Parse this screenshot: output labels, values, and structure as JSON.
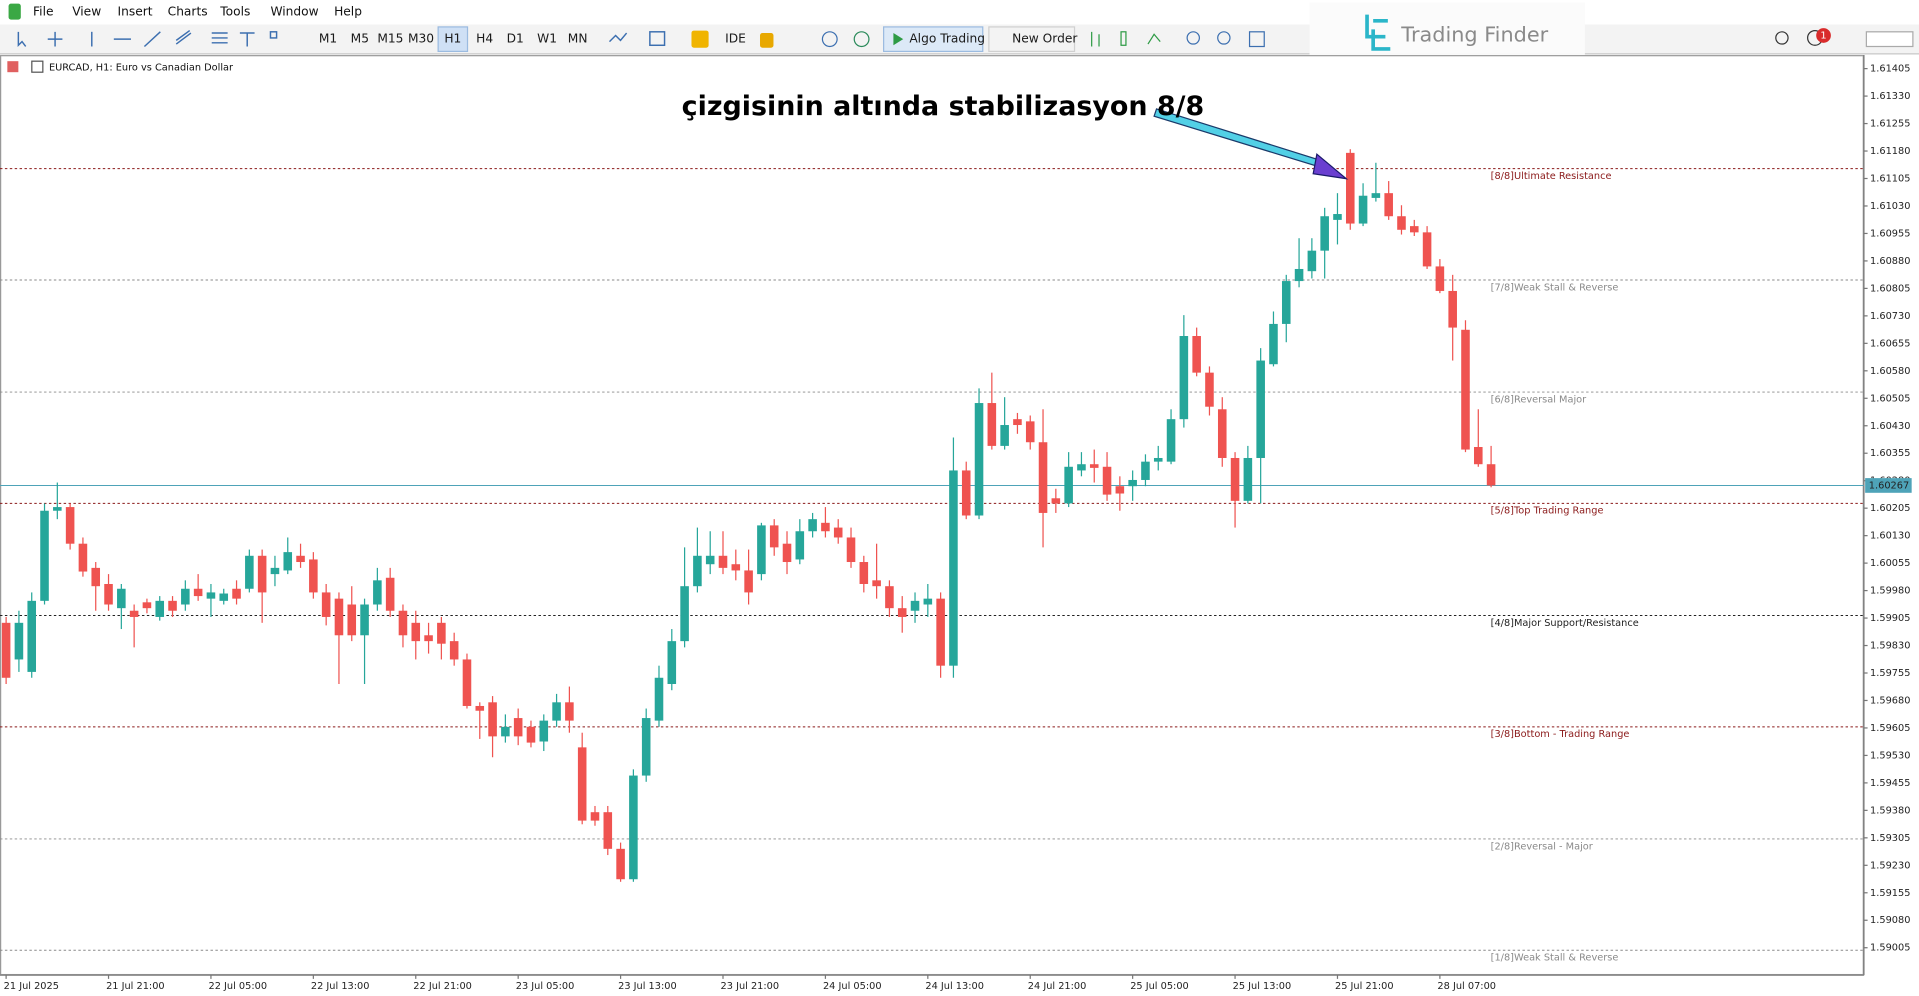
{
  "menu": [
    "File",
    "View",
    "Insert",
    "Charts",
    "Tools",
    "Window",
    "Help"
  ],
  "timeframes": [
    "M1",
    "M5",
    "M15",
    "M30",
    "H1",
    "H4",
    "D1",
    "W1",
    "MN"
  ],
  "active_timeframe": "H1",
  "toolbar": {
    "ide": "IDE",
    "algo": "Algo Trading",
    "order": "New Order"
  },
  "brand": "Trading Finder",
  "notification": "1",
  "chart_data": {
    "type": "candlestick",
    "title": "EURCAD, H1:  Euro vs Canadian Dollar",
    "annotation": "çizgisinin altında stabilizasyon 8/8",
    "categories": [
      "21 Jul 2025",
      null,
      null,
      null,
      null,
      null,
      null,
      null,
      "21 Jul 21:00",
      null,
      null,
      null,
      null,
      null,
      null,
      null,
      "22 Jul 05:00",
      null,
      null,
      null,
      null,
      null,
      null,
      null,
      "22 Jul 13:00",
      null,
      null,
      null,
      null,
      null,
      null,
      null,
      "22 Jul 21:00",
      null,
      null,
      null,
      null,
      null,
      null,
      null,
      "23 Jul 05:00",
      null,
      null,
      null,
      null,
      null,
      null,
      null,
      "23 Jul 13:00",
      null,
      null,
      null,
      null,
      null,
      null,
      null,
      "23 Jul 21:00",
      null,
      null,
      null,
      null,
      null,
      null,
      null,
      "24 Jul 05:00",
      null,
      null,
      null,
      null,
      null,
      null,
      null,
      "24 Jul 13:00",
      null,
      null,
      null,
      null,
      null,
      null,
      null,
      "24 Jul 21:00",
      null,
      null,
      null,
      null,
      null,
      null,
      null,
      "25 Jul 05:00",
      null,
      null,
      null,
      null,
      null,
      null,
      null,
      "25 Jul 13:00",
      null,
      null,
      null,
      null,
      null,
      null,
      null,
      "25 Jul 21:00",
      null,
      null,
      null,
      null,
      null,
      null,
      null,
      "28 Jul 07:00",
      null,
      null,
      null,
      null
    ],
    "open": [
      1.59892,
      1.59792,
      1.59758,
      1.59952,
      1.60198,
      1.60208,
      1.60108,
      1.60042,
      1.59998,
      1.59932,
      1.59925,
      1.59948,
      1.59908,
      1.59952,
      1.59942,
      1.59985,
      1.59958,
      1.59952,
      1.59985,
      1.59985,
      1.60075,
      1.60025,
      1.60035,
      1.60075,
      1.60065,
      1.59975,
      1.59958,
      1.59942,
      1.59858,
      1.59942,
      1.60015,
      1.59925,
      1.59892,
      1.59858,
      1.59892,
      1.59842,
      1.59792,
      1.59665,
      1.59675,
      1.59582,
      1.59632,
      1.59608,
      1.59568,
      1.59625,
      1.59675,
      1.59552,
      1.59375,
      1.59375,
      1.59275,
      1.59192,
      1.59475,
      1.59625,
      1.59725,
      1.59842,
      1.59992,
      1.60052,
      1.60075,
      1.60052,
      1.60035,
      1.60025,
      1.60158,
      1.60108,
      1.60065,
      1.60142,
      1.60165,
      1.60152,
      1.60125,
      1.60058,
      1.60008,
      1.59992,
      1.59932,
      1.59925,
      1.59942,
      1.59958,
      1.59775,
      1.60308,
      1.60185,
      1.60492,
      1.60375,
      1.60448,
      1.60442,
      1.60385,
      1.60232,
      1.60218,
      1.60308,
      1.60325,
      1.60318,
      1.60265,
      1.60265,
      1.60282,
      1.60332,
      1.60332,
      1.60448,
      1.60675,
      1.60575,
      1.60475,
      1.60342,
      1.60225,
      1.60342,
      1.60598,
      1.60708,
      1.60825,
      1.60852,
      1.60908,
      1.60992,
      1.61175,
      1.60982,
      1.61052,
      1.61065,
      1.61002,
      1.60975,
      1.60958,
      1.60865,
      1.60798,
      1.60692,
      1.60372,
      1.60325
    ],
    "high": [
      1.59908,
      1.59925,
      1.59975,
      1.60218,
      1.60275,
      1.60218,
      1.60125,
      1.60058,
      1.60025,
      1.59998,
      1.59942,
      1.59958,
      1.59965,
      1.59965,
      1.60008,
      1.60025,
      1.59998,
      1.59985,
      1.60008,
      1.60092,
      1.60092,
      1.60075,
      1.60125,
      1.60108,
      1.60085,
      1.59998,
      1.59975,
      1.59992,
      1.59958,
      1.60042,
      1.60042,
      1.59942,
      1.59925,
      1.59892,
      1.59908,
      1.59865,
      1.59808,
      1.59675,
      1.59692,
      1.59642,
      1.59658,
      1.59625,
      1.59642,
      1.59698,
      1.59718,
      1.59592,
      1.59392,
      1.59392,
      1.59292,
      1.59492,
      1.59658,
      1.59775,
      1.59875,
      1.60098,
      1.60152,
      1.60142,
      1.60142,
      1.60092,
      1.60092,
      1.60165,
      1.60175,
      1.60142,
      1.60175,
      1.60192,
      1.60208,
      1.60175,
      1.60152,
      1.60075,
      1.60108,
      1.60008,
      1.59965,
      1.59975,
      1.59998,
      1.59975,
      1.60398,
      1.60332,
      1.60532,
      1.60575,
      1.60508,
      1.60465,
      1.60458,
      1.60475,
      1.60258,
      1.60358,
      1.60358,
      1.60365,
      1.60358,
      1.60292,
      1.60308,
      1.60352,
      1.60375,
      1.60475,
      1.60732,
      1.60698,
      1.60592,
      1.60508,
      1.60358,
      1.60375,
      1.60642,
      1.60742,
      1.60842,
      1.60942,
      1.60942,
      1.61025,
      1.61065,
      1.61185,
      1.61092,
      1.61148,
      1.61098,
      1.61032,
      1.60992,
      1.60975,
      1.60885,
      1.60842,
      1.60718,
      1.60475,
      1.60375
    ],
    "low": [
      1.59725,
      1.59758,
      1.59742,
      1.59942,
      1.60175,
      1.60092,
      1.60018,
      1.59925,
      1.59925,
      1.59875,
      1.59825,
      1.59918,
      1.59898,
      1.59908,
      1.59925,
      1.59952,
      1.59908,
      1.59942,
      1.59942,
      1.59975,
      1.59892,
      1.59992,
      1.60025,
      1.60042,
      1.59958,
      1.59885,
      1.59725,
      1.59842,
      1.59725,
      1.59925,
      1.59908,
      1.59825,
      1.59792,
      1.59808,
      1.59792,
      1.59775,
      1.59658,
      1.59575,
      1.59525,
      1.59565,
      1.59558,
      1.59552,
      1.59542,
      1.59608,
      1.59592,
      1.59342,
      1.59338,
      1.59258,
      1.59185,
      1.59185,
      1.59458,
      1.59608,
      1.59708,
      1.59825,
      1.59975,
      1.60025,
      1.60025,
      1.60008,
      1.59942,
      1.60008,
      1.60075,
      1.60025,
      1.60052,
      1.60125,
      1.60125,
      1.60108,
      1.60042,
      1.59975,
      1.59958,
      1.59908,
      1.59865,
      1.59892,
      1.59908,
      1.59742,
      1.59742,
      1.60175,
      1.60175,
      1.60365,
      1.60365,
      1.60408,
      1.60365,
      1.60098,
      1.60192,
      1.60208,
      1.60292,
      1.60275,
      1.60225,
      1.60198,
      1.60225,
      1.60265,
      1.60308,
      1.60325,
      1.60425,
      1.60565,
      1.60458,
      1.60318,
      1.60152,
      1.60218,
      1.60218,
      1.60592,
      1.60658,
      1.60808,
      1.60832,
      1.60832,
      1.60925,
      1.60965,
      1.60975,
      1.61042,
      1.60992,
      1.60952,
      1.60948,
      1.60858,
      1.60792,
      1.60608,
      1.60358,
      1.60318,
      1.60262
    ],
    "close": [
      1.59742,
      1.59892,
      1.59952,
      1.60198,
      1.60208,
      1.60108,
      1.60032,
      1.59992,
      1.59942,
      1.59985,
      1.59908,
      1.59932,
      1.59952,
      1.59925,
      1.59985,
      1.59965,
      1.59975,
      1.59972,
      1.59958,
      1.60075,
      1.59975,
      1.60042,
      1.60085,
      1.60058,
      1.59975,
      1.59908,
      1.59858,
      1.59858,
      1.59942,
      1.60008,
      1.59925,
      1.59858,
      1.59842,
      1.59842,
      1.59835,
      1.59792,
      1.59665,
      1.59652,
      1.59582,
      1.59608,
      1.59582,
      1.59565,
      1.59625,
      1.59675,
      1.59625,
      1.59352,
      1.59352,
      1.59275,
      1.59192,
      1.59475,
      1.59632,
      1.59742,
      1.59842,
      1.59992,
      1.60075,
      1.60075,
      1.60042,
      1.60035,
      1.59975,
      1.60158,
      1.60098,
      1.60058,
      1.60142,
      1.60175,
      1.60142,
      1.60125,
      1.60058,
      1.59998,
      1.59992,
      1.59932,
      1.59908,
      1.59952,
      1.59958,
      1.59775,
      1.60308,
      1.60185,
      1.60492,
      1.60375,
      1.60432,
      1.60432,
      1.60385,
      1.60192,
      1.60218,
      1.60318,
      1.60325,
      1.60315,
      1.60242,
      1.60245,
      1.60282,
      1.60332,
      1.60342,
      1.60448,
      1.60675,
      1.60575,
      1.60482,
      1.60342,
      1.60225,
      1.60342,
      1.60608,
      1.60708,
      1.60825,
      1.60858,
      1.60908,
      1.61002,
      1.61008,
      1.60982,
      1.61058,
      1.61065,
      1.61002,
      1.60965,
      1.60958,
      1.60865,
      1.60798,
      1.60698,
      1.60365,
      1.60325,
      1.60267
    ],
    "up_color": "#26a69a",
    "down_color": "#ef5350",
    "ylim": [
      1.5893,
      1.61442
    ],
    "yticks": [
      1.59005,
      {
        "value": 1.5908,
        "label": "1.59080"
      },
      1.59155,
      {
        "value": 1.5923,
        "label": "1.59230"
      },
      1.59305,
      {
        "value": 1.5938,
        "label": "1.59380"
      },
      1.59455,
      {
        "value": 1.5953,
        "label": "1.59530"
      },
      1.59605,
      {
        "value": 1.5968,
        "label": "1.59680"
      },
      1.59755,
      {
        "value": 1.5983,
        "label": "1.59830"
      },
      1.59905,
      {
        "value": 1.5998,
        "label": "1.59980"
      },
      1.60055,
      {
        "value": 1.6013,
        "label": "1.60130"
      },
      1.60205,
      {
        "value": 1.6028,
        "label": "1.60280"
      },
      1.60355,
      {
        "value": 1.6043,
        "label": "1.60430"
      },
      1.60505,
      {
        "value": 1.6058,
        "label": "1.60580"
      },
      1.60655,
      {
        "value": 1.6073,
        "label": "1.60730"
      },
      1.60805,
      {
        "value": 1.6088,
        "label": "1.60880"
      },
      1.60955,
      {
        "value": 1.6103,
        "label": "1.61030"
      },
      1.61105,
      {
        "value": 1.6118,
        "label": "1.61180"
      },
      1.61255,
      {
        "value": 1.6133,
        "label": "1.61330"
      },
      1.61405
    ],
    "current_price": 1.60267,
    "current_price_color": "#4ea3b8",
    "levels": [
      {
        "label": "[8/8]Ultimate Resistance",
        "value": 1.61132,
        "color": "#8b1a1a"
      },
      {
        "label": "[7/8]Weak Stall & Reverse",
        "value": 1.60828,
        "color": "#8a8a8a"
      },
      {
        "label": "[6/8]Reversal Major",
        "value": 1.60522,
        "color": "#8a8a8a"
      },
      {
        "label": "[5/8]Top Trading Range",
        "value": 1.60218,
        "color": "#8b1a1a"
      },
      {
        "label": "[4/8]Major Support/Resistance",
        "value": 1.59912,
        "color": "#222222"
      },
      {
        "label": "[3/8]Bottom - Trading Range",
        "value": 1.59608,
        "color": "#8b1a1a"
      },
      {
        "label": "[2/8]Reversal - Major",
        "value": 1.59302,
        "color": "#8a8a8a"
      },
      {
        "label": "[1/8]Weak Stall & Reverse",
        "value": 1.58998,
        "color": "#8a8a8a"
      }
    ]
  }
}
